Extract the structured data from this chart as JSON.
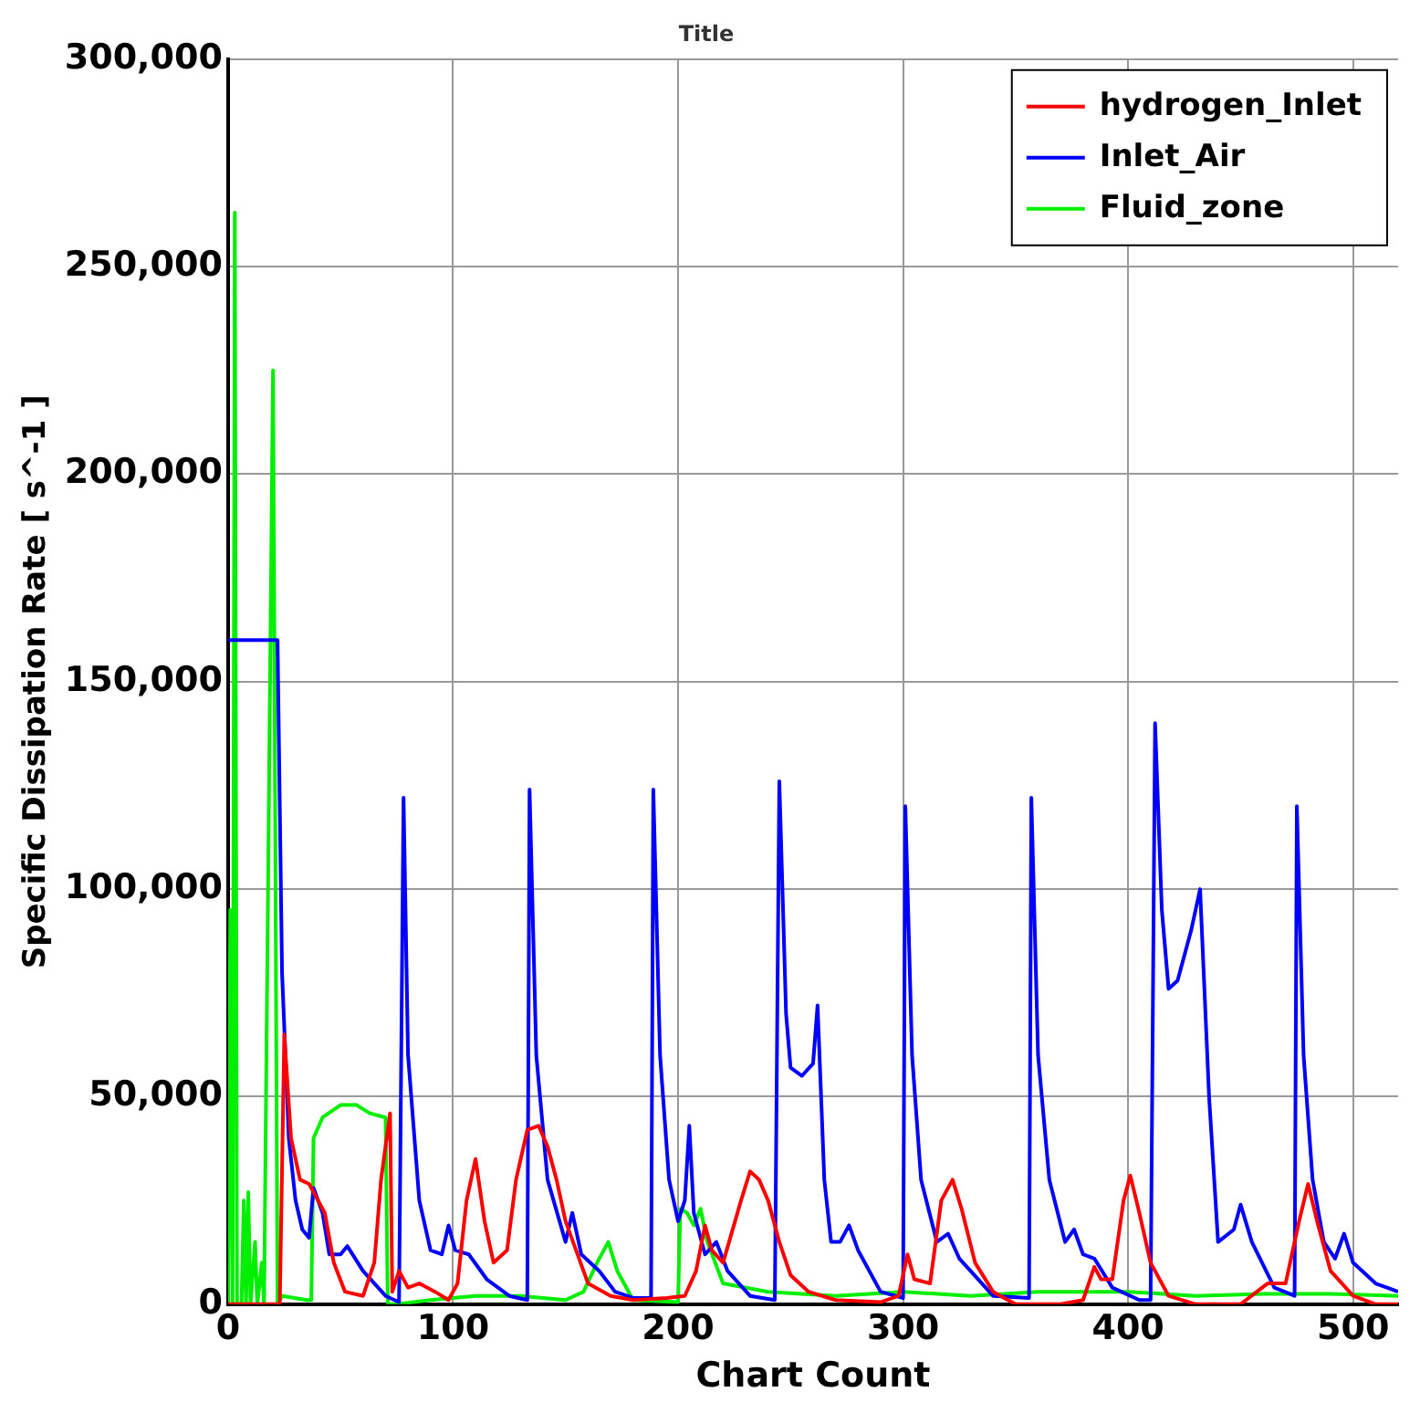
{
  "chart_data": {
    "type": "line",
    "title": "Title",
    "xlabel": "Chart Count",
    "ylabel": "Specific Dissipation Rate [ s^-1 ]",
    "xlim": [
      0,
      520
    ],
    "xticks": [
      0,
      100,
      200,
      300,
      400,
      500
    ],
    "ylim": [
      0,
      300000
    ],
    "yticks": [
      {
        "value": 0,
        "label": "0"
      },
      {
        "value": 50000,
        "label": "50,000"
      },
      {
        "value": 100000,
        "label": "100,000"
      },
      {
        "value": 150000,
        "label": "150,000"
      },
      {
        "value": 200000,
        "label": "200,000"
      },
      {
        "value": 250000,
        "label": "250,000"
      },
      {
        "value": 300000,
        "label": "300,000"
      }
    ],
    "grid": true,
    "legend": "top right",
    "marker": "none",
    "line_style": "solid",
    "series": [
      {
        "name": "hydrogen_Inlet",
        "color": "#ff0000",
        "x": [
          0,
          23,
          25,
          28,
          32,
          36,
          40,
          43,
          47,
          52,
          60,
          65,
          68,
          72,
          73,
          76,
          80,
          85,
          92,
          98,
          102,
          106,
          110,
          114,
          118,
          124,
          128,
          133,
          138,
          142,
          146,
          150,
          160,
          170,
          180,
          195,
          203,
          208,
          212,
          215,
          220,
          228,
          232,
          236,
          240,
          245,
          250,
          258,
          270,
          290,
          298,
          302,
          305,
          312,
          317,
          322,
          326,
          332,
          340,
          350,
          370,
          380,
          385,
          388,
          393,
          398,
          401,
          405,
          410,
          418,
          430,
          450,
          462,
          470,
          476,
          480,
          484,
          490,
          500,
          510,
          520
        ],
        "values": [
          0,
          0,
          65000,
          40000,
          30000,
          29000,
          25000,
          22000,
          10000,
          3000,
          2000,
          10000,
          30000,
          46000,
          3000,
          8000,
          4000,
          5000,
          3000,
          1000,
          5000,
          25000,
          35000,
          20000,
          10000,
          13000,
          30000,
          42000,
          43000,
          38000,
          30000,
          20000,
          5000,
          2000,
          1000,
          1500,
          2000,
          8000,
          19000,
          13000,
          10000,
          25000,
          32000,
          30000,
          25000,
          15000,
          7000,
          3000,
          1000,
          500,
          2000,
          12000,
          6000,
          5000,
          25000,
          30000,
          23000,
          10000,
          3000,
          0,
          0,
          1000,
          9000,
          6000,
          6000,
          25000,
          31000,
          22000,
          10000,
          2000,
          0,
          0,
          5000,
          5000,
          20000,
          29000,
          20000,
          8000,
          2000,
          0,
          0
        ]
      },
      {
        "name": "Inlet_Air",
        "color": "#0000ff",
        "x": [
          0,
          22,
          24,
          27,
          30,
          33,
          36,
          38,
          42,
          45,
          50,
          53,
          60,
          70,
          76,
          78,
          80,
          85,
          90,
          95,
          98,
          101,
          107,
          115,
          125,
          133,
          134,
          137,
          142,
          150,
          153,
          157,
          165,
          172,
          180,
          188,
          189,
          192,
          196,
          200,
          203,
          205,
          207,
          212,
          217,
          222,
          232,
          243,
          245,
          248,
          250,
          255,
          260,
          262,
          265,
          268,
          272,
          276,
          280,
          290,
          300,
          301,
          304,
          308,
          315,
          320,
          325,
          330,
          340,
          356,
          357,
          360,
          365,
          372,
          376,
          380,
          385,
          393,
          405,
          410,
          412,
          415,
          418,
          422,
          428,
          432,
          436,
          440,
          447,
          450,
          455,
          465,
          474,
          475,
          478,
          482,
          487,
          492,
          496,
          500,
          510,
          520
        ],
        "values": [
          160000,
          160000,
          80000,
          40000,
          25000,
          18000,
          16000,
          28000,
          22000,
          12000,
          12000,
          14000,
          8000,
          2000,
          500,
          122000,
          60000,
          25000,
          13000,
          12000,
          19000,
          13000,
          12000,
          6000,
          2000,
          1000,
          124000,
          60000,
          30000,
          15000,
          22000,
          12000,
          8000,
          3000,
          1500,
          1500,
          124000,
          60000,
          30000,
          20000,
          25000,
          43000,
          22000,
          12000,
          15000,
          8000,
          2000,
          1000,
          126000,
          70000,
          57000,
          55000,
          58000,
          72000,
          30000,
          15000,
          15000,
          19000,
          13000,
          3000,
          1500,
          120000,
          60000,
          30000,
          15000,
          17000,
          11000,
          8000,
          2000,
          1500,
          122000,
          60000,
          30000,
          15000,
          18000,
          12000,
          11000,
          4000,
          1000,
          1000,
          140000,
          95000,
          76000,
          78000,
          90000,
          100000,
          50000,
          15000,
          18000,
          24000,
          15000,
          4000,
          2000,
          120000,
          60000,
          30000,
          15000,
          11000,
          17000,
          10000,
          5000,
          3000
        ]
      },
      {
        "name": "Fluid_zone",
        "color": "#00ee00",
        "x": [
          0,
          1,
          2,
          3,
          4,
          6,
          7,
          8,
          9,
          10,
          12,
          13,
          15,
          16,
          20,
          22,
          24,
          35,
          37,
          38,
          42,
          50,
          57,
          63,
          70,
          71,
          75,
          90,
          110,
          130,
          150,
          158,
          164,
          169,
          173,
          180,
          200,
          201,
          204,
          207,
          210,
          213,
          220,
          240,
          270,
          300,
          330,
          360,
          400,
          430,
          460,
          490,
          520
        ],
        "values": [
          0,
          95000,
          0,
          263000,
          0,
          0,
          25000,
          0,
          27000,
          0,
          15000,
          0,
          10000,
          0,
          225000,
          0,
          2000,
          1000,
          1000,
          40000,
          45000,
          48000,
          48000,
          46000,
          45000,
          0,
          0,
          1000,
          2000,
          2000,
          1000,
          3000,
          10000,
          15000,
          8000,
          1000,
          500,
          23000,
          22000,
          19000,
          23000,
          15000,
          5000,
          3000,
          2000,
          3000,
          2000,
          3000,
          3000,
          2000,
          2500,
          2500,
          2000
        ]
      }
    ]
  }
}
